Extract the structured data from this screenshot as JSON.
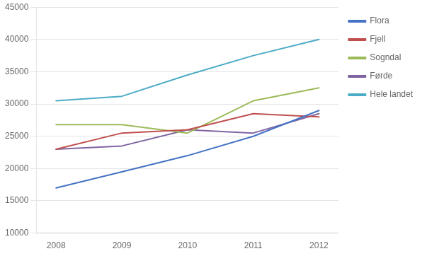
{
  "chart_data": {
    "type": "line",
    "x": [
      2008,
      2009,
      2010,
      2011,
      2012
    ],
    "series": [
      {
        "name": "Flora",
        "color": "#4472C4",
        "values": [
          17000,
          19500,
          22000,
          25000,
          29000
        ]
      },
      {
        "name": "Fjell",
        "color": "#C0504D",
        "values": [
          23000,
          25500,
          26000,
          28500,
          28000
        ]
      },
      {
        "name": "Sogndal",
        "color": "#9BBB59",
        "values": [
          26800,
          26800,
          25500,
          30500,
          32500
        ]
      },
      {
        "name": "Førde",
        "color": "#8064A2",
        "values": [
          23000,
          23500,
          26000,
          25500,
          28500
        ]
      },
      {
        "name": "Hele landet",
        "color": "#4BACC6",
        "values": [
          30500,
          31200,
          34500,
          37500,
          40000
        ]
      }
    ],
    "xlim": [
      2007.7,
      2012.3
    ],
    "xticks": [
      2008,
      2009,
      2010,
      2011,
      2012
    ],
    "ylim": [
      10000,
      45000
    ],
    "yticks": [
      10000,
      15000,
      20000,
      25000,
      30000,
      35000,
      40000,
      45000
    ],
    "grid": "y",
    "legend": "right"
  }
}
